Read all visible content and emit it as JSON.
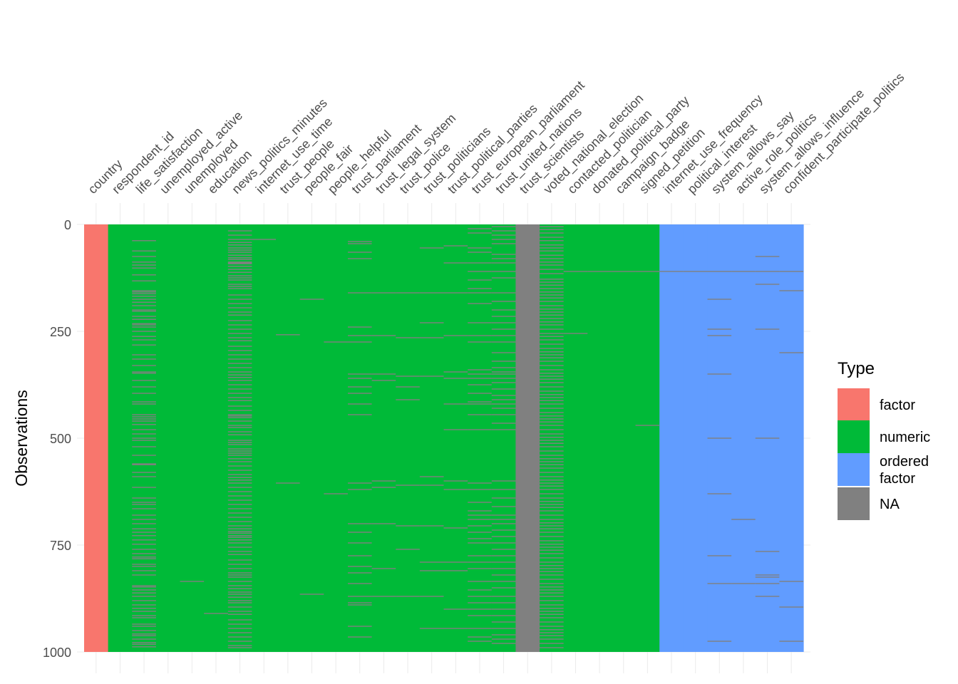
{
  "chart_data": {
    "type": "heatmap",
    "title": "",
    "xlabel": "",
    "ylabel": "Observations",
    "ylim": [
      0,
      1000
    ],
    "y_ticks": [
      "0",
      "250",
      "500",
      "750",
      "1000"
    ],
    "y_tick_values": [
      0,
      250,
      500,
      750,
      1000
    ],
    "columns": [
      {
        "name": "country",
        "type": "factor"
      },
      {
        "name": "respondent_id",
        "type": "numeric"
      },
      {
        "name": "life_satisfaction",
        "type": "numeric"
      },
      {
        "name": "unemployed_active",
        "type": "numeric"
      },
      {
        "name": "unemployed",
        "type": "numeric"
      },
      {
        "name": "education",
        "type": "numeric"
      },
      {
        "name": "news_politics_minutes",
        "type": "numeric"
      },
      {
        "name": "internet_use_time",
        "type": "numeric"
      },
      {
        "name": "trust_people",
        "type": "numeric"
      },
      {
        "name": "people_fair",
        "type": "numeric"
      },
      {
        "name": "people_helpful",
        "type": "numeric"
      },
      {
        "name": "trust_parliament",
        "type": "numeric"
      },
      {
        "name": "trust_legal_system",
        "type": "numeric"
      },
      {
        "name": "trust_police",
        "type": "numeric"
      },
      {
        "name": "trust_politicians",
        "type": "numeric"
      },
      {
        "name": "trust_political_parties",
        "type": "numeric"
      },
      {
        "name": "trust_european_parliament",
        "type": "numeric"
      },
      {
        "name": "trust_united_nations",
        "type": "numeric"
      },
      {
        "name": "trust_scientists",
        "type": "NA"
      },
      {
        "name": "voted_national_election",
        "type": "numeric"
      },
      {
        "name": "contacted_politician",
        "type": "numeric"
      },
      {
        "name": "donated_political_party",
        "type": "numeric"
      },
      {
        "name": "campaign_badge",
        "type": "numeric"
      },
      {
        "name": "signed_petition",
        "type": "numeric"
      },
      {
        "name": "internet_use_frequency",
        "type": "ordered factor"
      },
      {
        "name": "political_interest",
        "type": "ordered factor"
      },
      {
        "name": "system_allows_say",
        "type": "ordered factor"
      },
      {
        "name": "active_role_politics",
        "type": "ordered factor"
      },
      {
        "name": "system_allows_influence",
        "type": "ordered factor"
      },
      {
        "name": "confident_participate_politics",
        "type": "ordered factor"
      }
    ],
    "missing_rows": {
      "life_satisfaction": [
        38,
        62,
        75,
        88,
        95,
        102,
        118,
        132,
        155,
        158,
        162,
        168,
        175,
        182,
        190,
        200,
        203,
        215,
        222,
        232,
        235,
        240,
        250,
        262,
        270,
        282,
        305,
        315,
        330,
        345,
        348,
        365,
        380,
        395,
        415,
        420,
        445,
        450,
        455,
        460,
        468,
        480,
        490,
        500,
        505,
        520,
        540,
        560,
        562,
        580,
        590,
        615,
        640,
        650,
        655,
        665,
        680,
        690,
        700,
        712,
        720,
        728,
        738,
        748,
        760,
        770,
        778,
        782,
        795,
        800,
        810,
        820,
        845,
        848,
        855,
        862,
        870,
        880,
        890,
        898,
        905,
        915,
        920,
        935,
        940,
        950,
        958,
        962,
        970,
        978,
        982,
        988
      ],
      "unemployed": [
        835
      ],
      "education": [
        910
      ],
      "news_politics_minutes": [
        15,
        25,
        35,
        42,
        48,
        55,
        60,
        65,
        72,
        78,
        82,
        88,
        90,
        92,
        98,
        105,
        112,
        120,
        125,
        130,
        140,
        145,
        150,
        165,
        175,
        185,
        195,
        205,
        212,
        225,
        235,
        245,
        255,
        265,
        272,
        285,
        295,
        305,
        315,
        325,
        335,
        345,
        352,
        358,
        365,
        375,
        385,
        395,
        405,
        412,
        425,
        435,
        445,
        448,
        452,
        460,
        470,
        475,
        485,
        492,
        505,
        510,
        515,
        525,
        530,
        535,
        540,
        548,
        555,
        565,
        575,
        585,
        592,
        598,
        605,
        615,
        625,
        635,
        645,
        655,
        665,
        675,
        685,
        695,
        705,
        712,
        718,
        722,
        728,
        732,
        738,
        745,
        755,
        765,
        772,
        785,
        795,
        805,
        815,
        820,
        825,
        835,
        845,
        852,
        860,
        865,
        872,
        880,
        885,
        895,
        905,
        912,
        925,
        935,
        945,
        955,
        965,
        975,
        985,
        990
      ],
      "internet_use_time": [
        35
      ],
      "people_fair": [
        175,
        865
      ],
      "trust_people": [
        258,
        605
      ],
      "people_helpful": [
        275,
        630
      ],
      "trust_parliament": [
        40,
        45,
        65,
        80,
        160,
        240,
        260,
        275,
        350,
        360,
        380,
        395,
        420,
        445,
        605,
        620,
        700,
        720,
        745,
        775,
        800,
        815,
        840,
        870,
        885,
        890,
        940,
        965
      ],
      "trust_legal_system": [
        160,
        260,
        350,
        365,
        600,
        615,
        700,
        805,
        870
      ],
      "trust_police": [
        160,
        265,
        355,
        380,
        410,
        610,
        705,
        760,
        870
      ],
      "trust_politicians": [
        55,
        160,
        230,
        265,
        355,
        590,
        610,
        705,
        790,
        810,
        870,
        945
      ],
      "trust_political_parties": [
        50,
        90,
        160,
        260,
        345,
        360,
        420,
        480,
        600,
        620,
        710,
        790,
        810,
        900,
        945
      ],
      "trust_european_parliament": [
        10,
        20,
        55,
        65,
        90,
        110,
        130,
        150,
        160,
        185,
        230,
        260,
        275,
        340,
        350,
        360,
        375,
        395,
        415,
        420,
        445,
        480,
        605,
        620,
        650,
        670,
        680,
        690,
        705,
        720,
        735,
        745,
        775,
        790,
        805,
        835,
        855,
        870,
        885,
        900,
        915,
        945,
        965,
        975
      ],
      "trust_united_nations": [
        5,
        15,
        25,
        35,
        45,
        70,
        80,
        90,
        110,
        125,
        160,
        180,
        200,
        215,
        230,
        245,
        260,
        275,
        300,
        320,
        335,
        345,
        350,
        360,
        370,
        385,
        400,
        410,
        420,
        430,
        445,
        465,
        480,
        600,
        620,
        640,
        660,
        680,
        690,
        700,
        715,
        730,
        745,
        760,
        775,
        790,
        805,
        820,
        835,
        850,
        870,
        885,
        900,
        915,
        930,
        945,
        960,
        970,
        980
      ],
      "voted_national_election": [
        5,
        12,
        20,
        30,
        38,
        48,
        55,
        62,
        72,
        80,
        88,
        95,
        105,
        115,
        128,
        135,
        142,
        150,
        158,
        165,
        172,
        180,
        190,
        198,
        205,
        212,
        220,
        228,
        235,
        245,
        255,
        262,
        270,
        280,
        290,
        298,
        305,
        312,
        320,
        330,
        340,
        348,
        355,
        362,
        370,
        380,
        390,
        398,
        405,
        412,
        420,
        430,
        440,
        448,
        455,
        462,
        470,
        480,
        490,
        498,
        505,
        512,
        520,
        530,
        540,
        548,
        555,
        562,
        570,
        580,
        590,
        598,
        605,
        612,
        620,
        630,
        640,
        648,
        655,
        662,
        670,
        680,
        690,
        698,
        705,
        712,
        720,
        730,
        740,
        748,
        755,
        762,
        770,
        780,
        790,
        798,
        805,
        812,
        820,
        830,
        840,
        848,
        855,
        862,
        870,
        880,
        890,
        898,
        905,
        912,
        920,
        930,
        940,
        948,
        955,
        962,
        970,
        980,
        990
      ],
      "contacted_politician": [
        110,
        255
      ],
      "donated_political_party": [
        110
      ],
      "campaign_badge": [
        110
      ],
      "signed_petition": [
        110,
        470
      ],
      "internet_use_frequency": [
        110
      ],
      "political_interest": [
        110
      ],
      "system_allows_say": [
        110,
        175,
        245,
        260,
        350,
        500,
        630,
        775,
        840,
        975
      ],
      "active_role_politics": [
        110,
        690,
        840
      ],
      "system_allows_influence": [
        75,
        110,
        140,
        245,
        500,
        765,
        820,
        825,
        840,
        870
      ],
      "confident_participate_politics": [
        110,
        155,
        300,
        835,
        895,
        975
      ]
    },
    "legend": {
      "title": "Type",
      "position": "right",
      "entries": [
        {
          "label": "factor",
          "color": "#F8766D"
        },
        {
          "label": "numeric",
          "color": "#00BA38"
        },
        {
          "label": "ordered\nfactor",
          "color": "#619CFF"
        },
        {
          "label": "NA",
          "color": "#808080"
        }
      ]
    },
    "na_color": "#808080",
    "grid": true
  }
}
